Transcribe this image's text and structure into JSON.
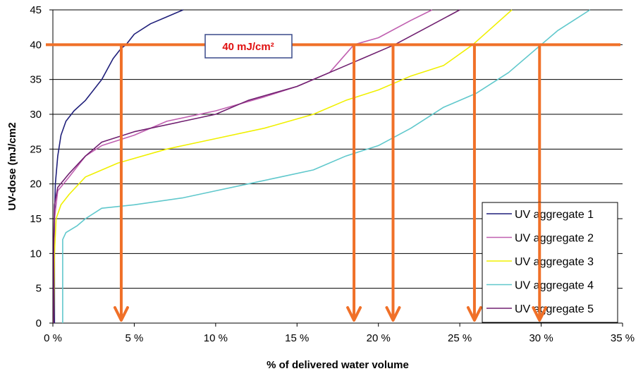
{
  "chart_data": {
    "type": "line",
    "title": "",
    "xlabel": "% of delivered water volume",
    "ylabel": "UV-dose (mJ/cm2",
    "xlim": [
      0,
      35
    ],
    "ylim": [
      0,
      45
    ],
    "x_ticks": [
      0,
      5,
      10,
      15,
      20,
      25,
      30,
      35
    ],
    "x_tick_labels": [
      "0 %",
      "5 %",
      "10 %",
      "15 %",
      "20 %",
      "25 %",
      "30 %",
      "35 %"
    ],
    "y_ticks": [
      0,
      5,
      10,
      15,
      20,
      25,
      30,
      35,
      40,
      45
    ],
    "y_tick_labels": [
      "0",
      "5",
      "10",
      "15",
      "20",
      "25",
      "30",
      "35",
      "40",
      "45"
    ],
    "grid": "horizontal",
    "legend_position": "bottom-right",
    "series": [
      {
        "name": "UV aggregate 1",
        "color": "#1f1f7a",
        "points": [
          [
            0.1,
            0
          ],
          [
            0.1,
            15
          ],
          [
            0.15,
            20
          ],
          [
            0.3,
            24
          ],
          [
            0.5,
            27
          ],
          [
            0.8,
            29
          ],
          [
            1.3,
            30.5
          ],
          [
            2,
            32
          ],
          [
            3,
            35
          ],
          [
            3.7,
            38
          ],
          [
            4.2,
            39.5
          ],
          [
            4.5,
            40
          ],
          [
            5,
            41.5
          ],
          [
            6,
            43
          ],
          [
            7,
            44
          ],
          [
            8,
            45
          ]
        ]
      },
      {
        "name": "UV aggregate 2",
        "color": "#c060b0",
        "points": [
          [
            0.05,
            0
          ],
          [
            0.05,
            10
          ],
          [
            0.1,
            15
          ],
          [
            0.3,
            19
          ],
          [
            1,
            21
          ],
          [
            2,
            24
          ],
          [
            3,
            25.5
          ],
          [
            5,
            27
          ],
          [
            7,
            29
          ],
          [
            10,
            30.5
          ],
          [
            13,
            32.5
          ],
          [
            15,
            34
          ],
          [
            17,
            36
          ],
          [
            18.5,
            40
          ],
          [
            20,
            41
          ],
          [
            22,
            43.5
          ],
          [
            23.3,
            45
          ]
        ]
      },
      {
        "name": "UV aggregate 3",
        "color": "#f0f000",
        "points": [
          [
            0.05,
            0
          ],
          [
            0.1,
            10
          ],
          [
            0.2,
            15
          ],
          [
            0.5,
            17
          ],
          [
            1,
            18.5
          ],
          [
            2,
            21
          ],
          [
            4,
            23
          ],
          [
            7,
            25
          ],
          [
            10,
            26.5
          ],
          [
            13,
            28
          ],
          [
            16,
            30
          ],
          [
            18,
            32
          ],
          [
            20,
            33.5
          ],
          [
            22,
            35.5
          ],
          [
            24,
            37
          ],
          [
            25.8,
            40
          ],
          [
            27,
            42.5
          ],
          [
            28.2,
            45
          ]
        ]
      },
      {
        "name": "UV aggregate 4",
        "color": "#60c8cc",
        "points": [
          [
            0.6,
            0
          ],
          [
            0.6,
            12
          ],
          [
            0.8,
            13
          ],
          [
            1.5,
            14
          ],
          [
            2,
            15
          ],
          [
            3,
            16.5
          ],
          [
            5,
            17
          ],
          [
            8,
            18
          ],
          [
            10,
            19
          ],
          [
            12,
            20
          ],
          [
            14,
            21
          ],
          [
            16,
            22
          ],
          [
            18,
            24
          ],
          [
            20,
            25.5
          ],
          [
            22,
            28
          ],
          [
            24,
            31
          ],
          [
            26,
            33
          ],
          [
            28,
            36
          ],
          [
            30,
            40
          ],
          [
            31,
            42
          ],
          [
            32,
            43.5
          ],
          [
            33,
            45
          ]
        ]
      },
      {
        "name": "UV aggregate 5",
        "color": "#702070",
        "points": [
          [
            0.05,
            0
          ],
          [
            0.05,
            12
          ],
          [
            0.1,
            17
          ],
          [
            0.3,
            19.5
          ],
          [
            1,
            21.5
          ],
          [
            2,
            24
          ],
          [
            3,
            26
          ],
          [
            5,
            27.5
          ],
          [
            8,
            29
          ],
          [
            10,
            30
          ],
          [
            12,
            32
          ],
          [
            15,
            34
          ],
          [
            17,
            36
          ],
          [
            19,
            38
          ],
          [
            21,
            40
          ],
          [
            23,
            42.5
          ],
          [
            25,
            45
          ]
        ]
      }
    ],
    "annotation": {
      "label": "40 mJ/cm²",
      "y": 40,
      "color": "#f07028",
      "label_color": "#e01010",
      "arrow_x": [
        4.2,
        18.5,
        20.9,
        25.9,
        29.9
      ]
    }
  }
}
